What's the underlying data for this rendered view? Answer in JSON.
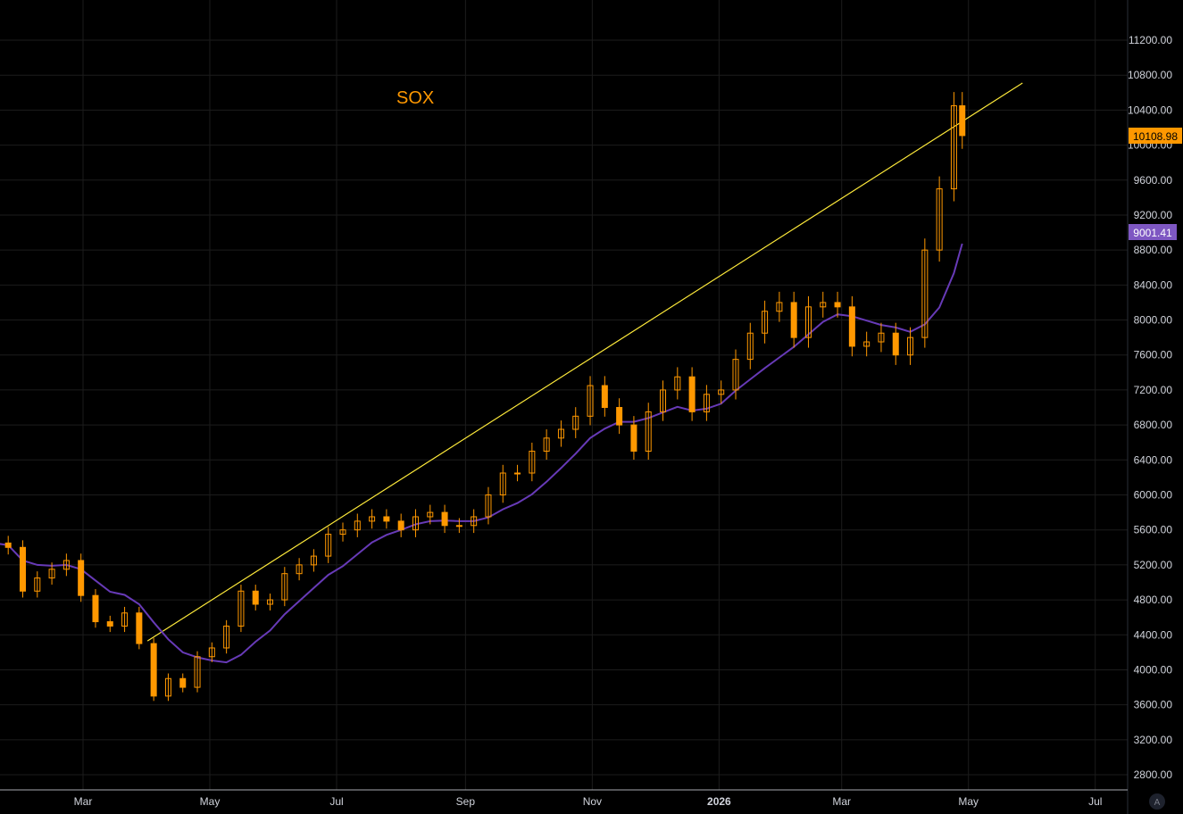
{
  "chart_data": {
    "type": "candlestick",
    "title": "SOX",
    "interval_note": "",
    "y_ticks": [
      2800,
      3200,
      3600,
      4000,
      4400,
      4800,
      5200,
      5600,
      6000,
      6400,
      6800,
      7200,
      7600,
      8000,
      8400,
      8800,
      9200,
      9600,
      10000,
      10400,
      10800,
      11200
    ],
    "x_ticks": [
      {
        "date": "2025-03-01",
        "label": "Mar"
      },
      {
        "date": "2025-05-01",
        "label": "May"
      },
      {
        "date": "2025-07-01",
        "label": "Jul"
      },
      {
        "date": "2025-09-01",
        "label": "Sep"
      },
      {
        "date": "2025-11-01",
        "label": "Nov"
      },
      {
        "date": "2026-01-01",
        "label": "2026"
      },
      {
        "date": "2026-03-01",
        "label": "Mar"
      },
      {
        "date": "2026-05-01",
        "label": "May"
      },
      {
        "date": "2026-07-01",
        "label": "Jul"
      }
    ],
    "ylim": [
      2700,
      11600
    ],
    "grid": true,
    "colors": {
      "candle": "#ff9800",
      "moving_average": "#673ab7",
      "trendline": "#ffeb3b",
      "last_price_badge": "#ff9800",
      "ma_badge": "#7e57c2",
      "grid": "#1c1c1c"
    },
    "closes": [
      [
        "2025-01-17",
        5450
      ],
      [
        "2025-01-24",
        5400
      ],
      [
        "2025-01-31",
        4900
      ],
      [
        "2025-02-07",
        5050
      ],
      [
        "2025-02-14",
        5150
      ],
      [
        "2025-02-21",
        5250
      ],
      [
        "2025-02-28",
        4850
      ],
      [
        "2025-03-07",
        4550
      ],
      [
        "2025-03-14",
        4500
      ],
      [
        "2025-03-21",
        4650
      ],
      [
        "2025-03-28",
        4300
      ],
      [
        "2025-04-04",
        3700
      ],
      [
        "2025-04-11",
        3900
      ],
      [
        "2025-04-18",
        3800
      ],
      [
        "2025-04-25",
        4150
      ],
      [
        "2025-05-02",
        4250
      ],
      [
        "2025-05-09",
        4500
      ],
      [
        "2025-05-16",
        4900
      ],
      [
        "2025-05-23",
        4750
      ],
      [
        "2025-05-30",
        4800
      ],
      [
        "2025-06-06",
        5100
      ],
      [
        "2025-06-13",
        5200
      ],
      [
        "2025-06-20",
        5300
      ],
      [
        "2025-06-27",
        5550
      ],
      [
        "2025-07-04",
        5600
      ],
      [
        "2025-07-11",
        5700
      ],
      [
        "2025-07-18",
        5750
      ],
      [
        "2025-07-25",
        5700
      ],
      [
        "2025-08-01",
        5600
      ],
      [
        "2025-08-08",
        5750
      ],
      [
        "2025-08-15",
        5800
      ],
      [
        "2025-08-22",
        5650
      ],
      [
        "2025-08-29",
        5650
      ],
      [
        "2025-09-05",
        5750
      ],
      [
        "2025-09-12",
        6000
      ],
      [
        "2025-09-19",
        6250
      ],
      [
        "2025-09-26",
        6250
      ],
      [
        "2025-10-03",
        6500
      ],
      [
        "2025-10-10",
        6650
      ],
      [
        "2025-10-17",
        6750
      ],
      [
        "2025-10-24",
        6900
      ],
      [
        "2025-10-31",
        7250
      ],
      [
        "2025-11-07",
        7000
      ],
      [
        "2025-11-14",
        6800
      ],
      [
        "2025-11-21",
        6500
      ],
      [
        "2025-11-28",
        6950
      ],
      [
        "2025-12-05",
        7200
      ],
      [
        "2025-12-12",
        7350
      ],
      [
        "2025-12-19",
        6950
      ],
      [
        "2025-12-26",
        7150
      ],
      [
        "2026-01-02",
        7200
      ],
      [
        "2026-01-09",
        7550
      ],
      [
        "2026-01-16",
        7850
      ],
      [
        "2026-01-23",
        8100
      ],
      [
        "2026-01-30",
        8200
      ],
      [
        "2026-02-06",
        7800
      ],
      [
        "2026-02-13",
        8150
      ],
      [
        "2026-02-20",
        8200
      ],
      [
        "2026-02-27",
        8150
      ],
      [
        "2026-03-06",
        7700
      ],
      [
        "2026-03-13",
        7750
      ],
      [
        "2026-03-20",
        7850
      ],
      [
        "2026-03-27",
        7600
      ],
      [
        "2026-04-03",
        7800
      ],
      [
        "2026-04-10",
        8800
      ],
      [
        "2026-04-17",
        9500
      ],
      [
        "2026-04-24",
        10450
      ],
      [
        "2026-04-28",
        10108.98
      ]
    ],
    "trendline": [
      [
        "2025-04-01",
        4330
      ],
      [
        "2026-05-27",
        10710
      ]
    ],
    "last_price": "10108.98",
    "moving_average_last": "9001.41",
    "auto_scale_label": "A"
  }
}
